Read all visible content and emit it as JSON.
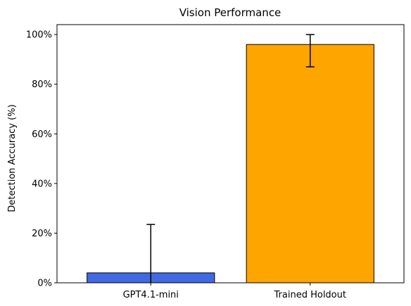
{
  "chart_data": {
    "type": "bar",
    "title": "Vision Performance",
    "xlabel": "",
    "ylabel": "Detection Accuracy (%)",
    "categories": [
      "GPT4.1-mini",
      "Trained Holdout"
    ],
    "values": [
      4,
      96
    ],
    "error_low": [
      0,
      87
    ],
    "error_high": [
      23.5,
      100
    ],
    "colors": [
      "#4169e1",
      "#ffa500"
    ],
    "ylim": [
      0,
      104
    ],
    "yticks": [
      0,
      20,
      40,
      60,
      80,
      100
    ],
    "ytick_labels": [
      "0%",
      "20%",
      "40%",
      "60%",
      "80%",
      "100%"
    ],
    "grid": false,
    "legend": false
  }
}
